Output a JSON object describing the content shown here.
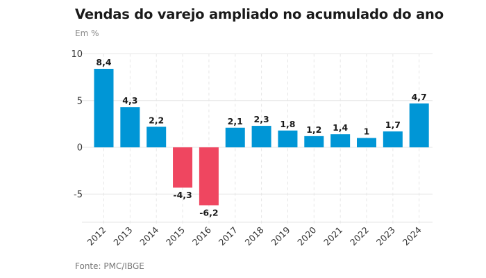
{
  "title": "Vendas do varejo ampliado no acumulado do ano",
  "subtitle": "Em %",
  "source": "Fonte: PMC/IBGE",
  "colors": {
    "positive": "#0096d6",
    "negative": "#ef4660",
    "grid": "#e6e6e6",
    "axis": "#dddddd"
  },
  "chart_data": {
    "type": "bar",
    "title": "Vendas do varejo ampliado no acumulado do ano",
    "subtitle": "Em %",
    "xlabel": "",
    "ylabel": "",
    "categories": [
      "2012",
      "2013",
      "2014",
      "2015",
      "2016",
      "2017",
      "2018",
      "2019",
      "2020",
      "2021",
      "2022",
      "2023",
      "2024"
    ],
    "values": [
      8.4,
      4.3,
      2.2,
      -4.3,
      -6.2,
      2.1,
      2.3,
      1.8,
      1.2,
      1.4,
      1,
      1.7,
      4.7
    ],
    "value_labels": [
      "8,4",
      "4,3",
      "2,2",
      "-4,3",
      "-6,2",
      "2,1",
      "2,3",
      "1,8",
      "1,2",
      "1,4",
      "1",
      "1,7",
      "4,7"
    ],
    "yticks": [
      10,
      5,
      0,
      -5
    ],
    "ytick_labels": [
      "10",
      "5",
      "0",
      "-5"
    ],
    "ylim": [
      -8,
      10
    ],
    "grid": true,
    "legend": "none",
    "source": "Fonte: PMC/IBGE"
  }
}
